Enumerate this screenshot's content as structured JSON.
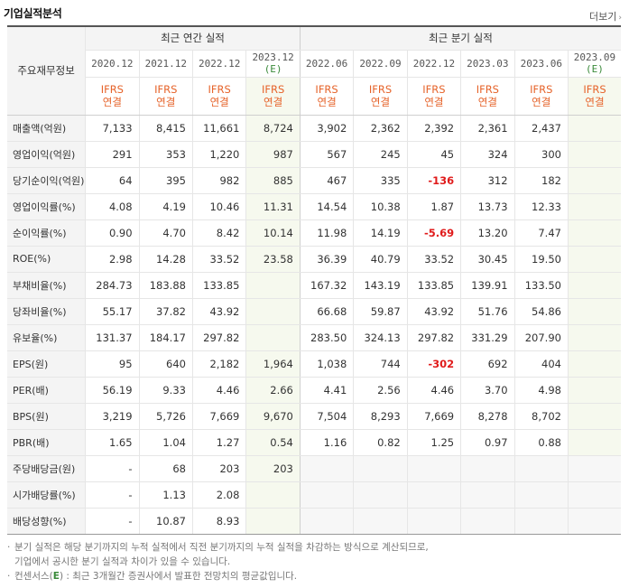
{
  "section_title": "기업실적분석",
  "more_link": "더보기",
  "more_arrow": "›",
  "header_label": "주요재무정보",
  "annual_group": "최근 연간 실적",
  "quarter_group": "최근 분기 실적",
  "annual_periods": [
    {
      "date": "2020.12",
      "est": ""
    },
    {
      "date": "2021.12",
      "est": ""
    },
    {
      "date": "2022.12",
      "est": ""
    },
    {
      "date": "2023.12",
      "est": "(E)"
    }
  ],
  "quarter_periods": [
    {
      "date": "2022.06",
      "est": ""
    },
    {
      "date": "2022.09",
      "est": ""
    },
    {
      "date": "2022.12",
      "est": ""
    },
    {
      "date": "2023.03",
      "est": ""
    },
    {
      "date": "2023.06",
      "est": ""
    },
    {
      "date": "2023.09",
      "est": "(E)"
    }
  ],
  "ifrs_line1": "IFRS",
  "ifrs_line2": "연결",
  "rows": [
    {
      "label": "매출액(억원)",
      "annual": [
        "7,133",
        "8,415",
        "11,661",
        "8,724"
      ],
      "quarter": [
        "3,902",
        "2,362",
        "2,392",
        "2,361",
        "2,437",
        ""
      ]
    },
    {
      "label": "영업이익(억원)",
      "annual": [
        "291",
        "353",
        "1,220",
        "987"
      ],
      "quarter": [
        "567",
        "245",
        "45",
        "324",
        "300",
        ""
      ]
    },
    {
      "label": "당기순이익(억원)",
      "annual": [
        "64",
        "395",
        "982",
        "885"
      ],
      "quarter": [
        "467",
        "335",
        "-136",
        "312",
        "182",
        ""
      ]
    },
    {
      "label": "영업이익률(%)",
      "annual": [
        "4.08",
        "4.19",
        "10.46",
        "11.31"
      ],
      "quarter": [
        "14.54",
        "10.38",
        "1.87",
        "13.73",
        "12.33",
        ""
      ]
    },
    {
      "label": "순이익률(%)",
      "annual": [
        "0.90",
        "4.70",
        "8.42",
        "10.14"
      ],
      "quarter": [
        "11.98",
        "14.19",
        "-5.69",
        "13.20",
        "7.47",
        ""
      ]
    },
    {
      "label": "ROE(%)",
      "annual": [
        "2.98",
        "14.28",
        "33.52",
        "23.58"
      ],
      "quarter": [
        "36.39",
        "40.79",
        "33.52",
        "30.45",
        "19.50",
        ""
      ]
    },
    {
      "label": "부채비율(%)",
      "annual": [
        "284.73",
        "183.88",
        "133.85",
        ""
      ],
      "quarter": [
        "167.32",
        "143.19",
        "133.85",
        "139.91",
        "133.50",
        ""
      ]
    },
    {
      "label": "당좌비율(%)",
      "annual": [
        "55.17",
        "37.82",
        "43.92",
        ""
      ],
      "quarter": [
        "66.68",
        "59.87",
        "43.92",
        "51.76",
        "54.86",
        ""
      ]
    },
    {
      "label": "유보율(%)",
      "annual": [
        "131.37",
        "184.17",
        "297.82",
        ""
      ],
      "quarter": [
        "283.50",
        "324.13",
        "297.82",
        "331.29",
        "207.90",
        ""
      ]
    },
    {
      "label": "EPS(원)",
      "annual": [
        "95",
        "640",
        "2,182",
        "1,964"
      ],
      "quarter": [
        "1,038",
        "744",
        "-302",
        "692",
        "404",
        ""
      ]
    },
    {
      "label": "PER(배)",
      "annual": [
        "56.19",
        "9.33",
        "4.46",
        "2.66"
      ],
      "quarter": [
        "4.41",
        "2.56",
        "4.46",
        "3.70",
        "4.98",
        ""
      ]
    },
    {
      "label": "BPS(원)",
      "annual": [
        "3,219",
        "5,726",
        "7,669",
        "9,670"
      ],
      "quarter": [
        "7,504",
        "8,293",
        "7,669",
        "8,278",
        "8,702",
        ""
      ]
    },
    {
      "label": "PBR(배)",
      "annual": [
        "1.65",
        "1.04",
        "1.27",
        "0.54"
      ],
      "quarter": [
        "1.16",
        "0.82",
        "1.25",
        "0.97",
        "0.88",
        ""
      ]
    },
    {
      "label": "주당배당금(원)",
      "annual": [
        "-",
        "68",
        "203",
        "203"
      ],
      "quarter": [],
      "shaded": true
    },
    {
      "label": "시가배당률(%)",
      "annual": [
        "-",
        "1.13",
        "2.08",
        ""
      ],
      "quarter": [],
      "shaded": true
    },
    {
      "label": "배당성향(%)",
      "annual": [
        "-",
        "10.87",
        "8.93",
        ""
      ],
      "quarter": [],
      "shaded": true
    }
  ],
  "notes": {
    "bullet": "·",
    "line1": "분기 실적은 해당 분기까지의 누적 실적에서 직전 분기까지의 누적 실적을 차감하는 방식으로 계산되므로,",
    "line2": "기업에서 공시한 분기 실적과 차이가 있을 수 있습니다.",
    "line3_pre": "컨센서스(",
    "line3_e": "E",
    "line3_post": ") : 최근 3개월간 증권사에서 발표한 전망치의 평균값입니다."
  }
}
